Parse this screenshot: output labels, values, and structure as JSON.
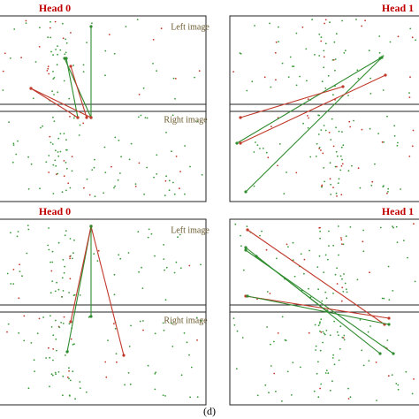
{
  "panels": [
    {
      "title": "Head 0",
      "left_label": "Left image",
      "right_label": "Right image"
    },
    {
      "title": "Head 1"
    },
    {
      "title": "Head 0",
      "left_label": "Left image",
      "right_label": "Right image"
    },
    {
      "title": "Head 1"
    }
  ],
  "caption": "(d)"
}
